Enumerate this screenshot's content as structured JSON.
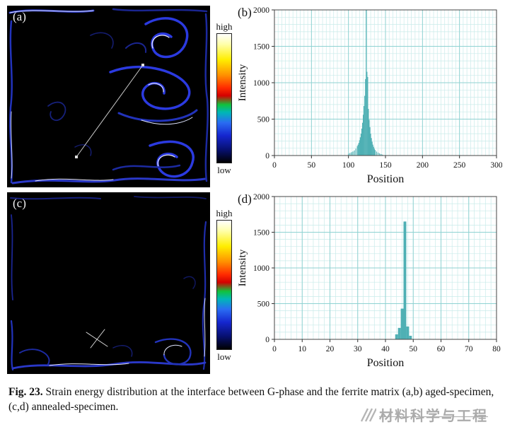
{
  "figure": {
    "caption_label": "Fig. 23.",
    "caption_text": " Strain energy distribution at the interface between G-phase and the ferrite matrix (a,b) aged-specimen, (c,d) annealed-specimen."
  },
  "panels": {
    "a": {
      "label": "(a)"
    },
    "b": {
      "label": "(b)"
    },
    "c": {
      "label": "(c)"
    },
    "d": {
      "label": "(d)"
    }
  },
  "colorbar": {
    "high": "high",
    "low": "low"
  },
  "watermark": {
    "text": "材料科学与工程",
    "icon": "diagonal-slashes-logo-icon"
  },
  "chart_data": [
    {
      "id": "b",
      "type": "bar",
      "title": "",
      "xlabel": "Position",
      "ylabel": "Intensity",
      "xlim": [
        0,
        300
      ],
      "ylim": [
        0,
        2000
      ],
      "xticks": [
        0,
        50,
        100,
        150,
        200,
        250,
        300
      ],
      "yticks": [
        0,
        500,
        1000,
        1500,
        2000
      ],
      "x_minor_step": 5,
      "y_minor_step": 100,
      "grid": true,
      "legend": "none",
      "bar_color": "#4fb0b4",
      "grid_minor_color": "#c9ebea",
      "grid_major_color": "#8fd2d2",
      "bar_width_units": 1,
      "x": [
        100,
        102,
        104,
        106,
        108,
        110,
        112,
        113,
        114,
        115,
        116,
        117,
        118,
        119,
        120,
        121,
        122,
        123,
        124,
        125,
        126,
        127,
        128,
        129,
        130,
        131,
        132,
        133,
        134,
        135,
        136,
        138,
        140,
        142,
        144,
        146
      ],
      "values": [
        25,
        35,
        45,
        55,
        70,
        95,
        130,
        150,
        175,
        210,
        250,
        300,
        370,
        450,
        560,
        680,
        820,
        1050,
        2000,
        1150,
        1080,
        640,
        490,
        390,
        300,
        240,
        190,
        150,
        120,
        95,
        75,
        55,
        40,
        30,
        20,
        12
      ]
    },
    {
      "id": "d",
      "type": "bar",
      "title": "",
      "xlabel": "Position",
      "ylabel": "Intensity",
      "xlim": [
        0,
        80
      ],
      "ylim": [
        0,
        2000
      ],
      "xticks": [
        0,
        10,
        20,
        30,
        40,
        50,
        60,
        70,
        80
      ],
      "yticks": [
        0,
        500,
        1000,
        1500,
        2000
      ],
      "x_minor_step": 2,
      "y_minor_step": 100,
      "grid": true,
      "legend": "none",
      "bar_color": "#4fb0b4",
      "grid_minor_color": "#c9ebea",
      "grid_major_color": "#8fd2d2",
      "bar_width_units": 1,
      "x": [
        44,
        45,
        46,
        47,
        48,
        49
      ],
      "values": [
        70,
        160,
        430,
        1650,
        180,
        50
      ]
    }
  ]
}
